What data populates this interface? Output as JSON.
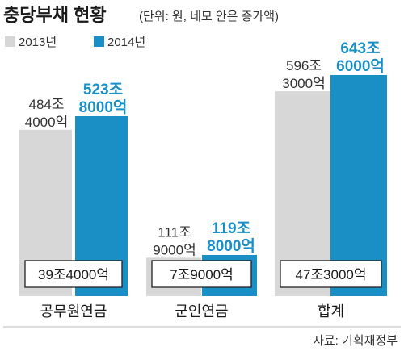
{
  "title": "충당부채 현황",
  "subtitle": "(단위: 원, 네모 안은 증가액)",
  "source": "자료: 기획재정부",
  "colors": {
    "y2013": "#d7d7d7",
    "y2014": "#1a8fc6",
    "text": "#222222"
  },
  "chart_data": {
    "type": "bar",
    "unit": "억 원",
    "categories": [
      "공무원연금",
      "군인연금",
      "합계"
    ],
    "series": [
      {
        "name": "2013년",
        "values": [
          4844000,
          1119000,
          5963000
        ]
      },
      {
        "name": "2014년",
        "values": [
          5238000,
          1198000,
          6436000
        ]
      }
    ],
    "value_labels": {
      "2013년": [
        [
          "484조",
          "4000억"
        ],
        [
          "111조",
          "9000억"
        ],
        [
          "596조",
          "3000억"
        ]
      ],
      "2014년": [
        [
          "523조",
          "8000억"
        ],
        [
          "119조",
          "8000억"
        ],
        [
          "643조",
          "6000억"
        ]
      ]
    },
    "increase_labels": [
      "39조4000억",
      "7조9000억",
      "47조3000억"
    ],
    "increase_values": [
      394000,
      79000,
      473000
    ],
    "legend": [
      "2013년",
      "2014년"
    ],
    "legend_position": "top-left",
    "grid": false
  }
}
